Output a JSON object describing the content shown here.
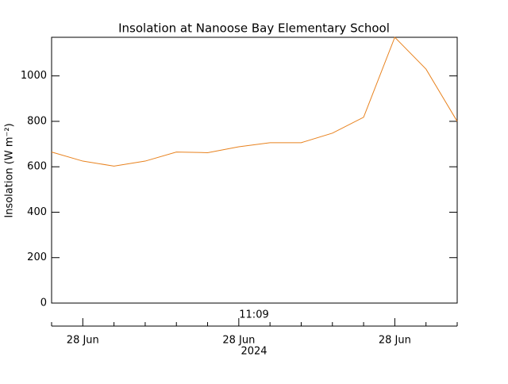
{
  "chart_data": {
    "type": "line",
    "title": "Insolation at Nanoose Bay Elementary School",
    "ylabel": "Insolation (W m⁻²)",
    "time_label": "11:09",
    "year_label": "2024",
    "categories": [
      null,
      "28 Jun",
      null,
      null,
      null,
      null,
      "28 Jun",
      null,
      null,
      null,
      null,
      "28 Jun",
      null,
      null
    ],
    "series": [
      {
        "name": "Insolation",
        "color": "#e8821e",
        "values": [
          665,
          625,
          603,
          625,
          665,
          662,
          688,
          706,
          706,
          748,
          818,
          1170,
          1030,
          800
        ]
      }
    ],
    "ylim": [
      0,
      1170
    ],
    "yticks": [
      0,
      200,
      400,
      600,
      800,
      1000
    ]
  }
}
